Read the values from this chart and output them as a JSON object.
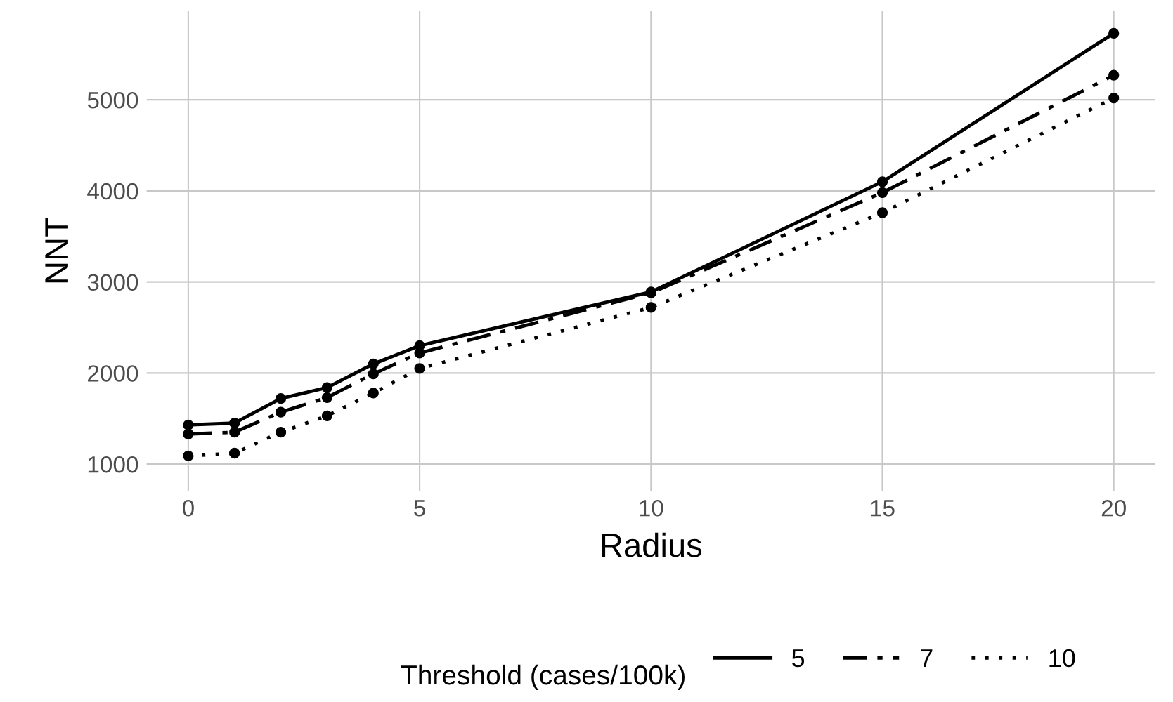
{
  "chart_data": {
    "type": "line",
    "xlabel": "Radius",
    "ylabel": "NNT",
    "legend_title": "Threshold (cases/100k)",
    "x": [
      0,
      1,
      2,
      3,
      4,
      5,
      10,
      15,
      20
    ],
    "series": [
      {
        "name": "5",
        "color": "#000000",
        "line_style": "solid",
        "values": [
          1430,
          1450,
          1720,
          1840,
          2100,
          2300,
          2890,
          4100,
          5730
        ]
      },
      {
        "name": "7",
        "color": "#000000",
        "line_style": "dashed",
        "values": [
          1330,
          1350,
          1570,
          1730,
          1990,
          2220,
          2880,
          3980,
          5270
        ]
      },
      {
        "name": "10",
        "color": "#000000",
        "line_style": "dotted",
        "values": [
          1090,
          1120,
          1350,
          1530,
          1780,
          2050,
          2720,
          3760,
          5020
        ]
      }
    ],
    "xlim": [
      -0.9,
      20.9
    ],
    "ylim": [
      700,
      5980
    ],
    "xticks": [
      0,
      5,
      10,
      15,
      20
    ],
    "yticks": [
      1000,
      2000,
      3000,
      4000,
      5000
    ],
    "grid": true,
    "legend": "bottom",
    "marker": "circle"
  }
}
